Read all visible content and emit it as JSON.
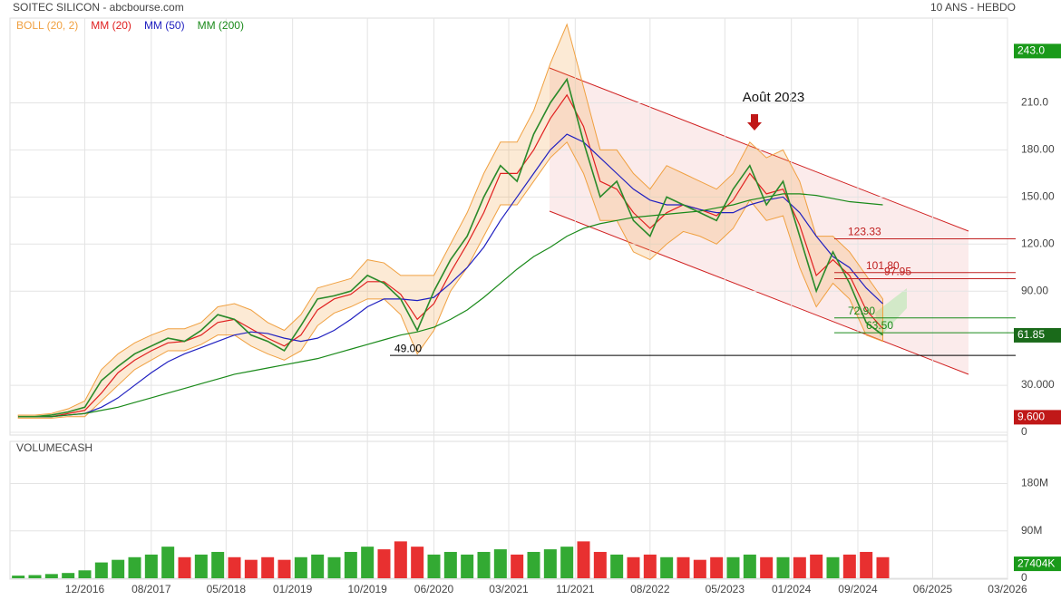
{
  "header": {
    "title": "SOITEC SILICON - abcbourse.com",
    "period": "10 ANS - HEBDO"
  },
  "chart_data": [
    {
      "type": "line",
      "x": [
        "04/2016",
        "06/2016",
        "08/2016",
        "10/2016",
        "12/2016",
        "02/2017",
        "04/2017",
        "06/2017",
        "08/2017",
        "10/2017",
        "12/2017",
        "02/2018",
        "04/2018",
        "06/2018",
        "08/2018",
        "10/2018",
        "12/2018",
        "02/2019",
        "04/2019",
        "06/2019",
        "08/2019",
        "10/2019",
        "12/2019",
        "02/2020",
        "04/2020",
        "06/2020",
        "08/2020",
        "10/2020",
        "12/2020",
        "02/2021",
        "04/2021",
        "06/2021",
        "08/2021",
        "10/2021",
        "12/2021",
        "02/2022",
        "04/2022",
        "06/2022",
        "08/2022",
        "10/2022",
        "12/2022",
        "02/2023",
        "04/2023",
        "06/2023",
        "08/2023",
        "10/2023",
        "12/2023",
        "02/2024",
        "04/2024",
        "06/2024",
        "08/2024",
        "10/2024",
        "12/2024"
      ],
      "values": [
        10,
        10,
        11,
        13,
        16,
        33,
        42,
        50,
        55,
        60,
        58,
        65,
        75,
        72,
        62,
        58,
        52,
        68,
        85,
        87,
        90,
        100,
        95,
        85,
        65,
        90,
        110,
        125,
        150,
        170,
        160,
        190,
        210,
        225,
        185,
        150,
        160,
        135,
        125,
        150,
        145,
        140,
        135,
        155,
        170,
        145,
        160,
        125,
        90,
        115,
        95,
        70,
        62
      ],
      "color": "#2a8a2a",
      "series": [
        {
          "name": "BOLL (20, 2)",
          "color": "#f0a040",
          "values": [
            11,
            11,
            12,
            15,
            20,
            40,
            50,
            57,
            62,
            66,
            66,
            70,
            80,
            82,
            78,
            70,
            65,
            75,
            92,
            95,
            98,
            110,
            108,
            100,
            100,
            100,
            120,
            140,
            165,
            185,
            185,
            205,
            235,
            260,
            220,
            180,
            180,
            165,
            155,
            170,
            165,
            160,
            155,
            165,
            185,
            175,
            180,
            160,
            125,
            125,
            115,
            100,
            85
          ],
          "lower": [
            9,
            9,
            9,
            10,
            10,
            20,
            30,
            40,
            46,
            52,
            52,
            56,
            62,
            62,
            55,
            50,
            46,
            52,
            68,
            76,
            80,
            85,
            85,
            75,
            50,
            65,
            90,
            105,
            125,
            145,
            145,
            160,
            175,
            185,
            165,
            135,
            135,
            115,
            110,
            120,
            128,
            125,
            120,
            130,
            148,
            135,
            138,
            105,
            80,
            95,
            85,
            62,
            58
          ]
        },
        {
          "name": "MM (20)",
          "color": "#e02020",
          "values": [
            10,
            10,
            10,
            12,
            14,
            25,
            38,
            46,
            52,
            57,
            58,
            62,
            70,
            72,
            66,
            60,
            55,
            62,
            78,
            85,
            88,
            96,
            96,
            88,
            72,
            82,
            102,
            120,
            140,
            165,
            165,
            180,
            200,
            215,
            195,
            160,
            155,
            140,
            130,
            140,
            145,
            142,
            138,
            148,
            165,
            152,
            155,
            132,
            100,
            110,
            100,
            78,
            66
          ]
        },
        {
          "name": "MM (50)",
          "color": "#2020c0",
          "values": [
            10,
            10,
            10,
            11,
            12,
            16,
            22,
            30,
            38,
            45,
            50,
            54,
            58,
            62,
            64,
            63,
            60,
            58,
            60,
            65,
            72,
            80,
            85,
            85,
            84,
            86,
            95,
            105,
            118,
            135,
            150,
            165,
            180,
            190,
            185,
            175,
            165,
            155,
            148,
            145,
            145,
            142,
            140,
            140,
            145,
            148,
            150,
            140,
            125,
            112,
            105,
            92,
            82
          ]
        },
        {
          "name": "MM (200)",
          "color": "#1a8a1a",
          "values": [
            10,
            10,
            10,
            11,
            12,
            14,
            16,
            19,
            22,
            25,
            28,
            31,
            34,
            37,
            39,
            41,
            43,
            45,
            47,
            50,
            53,
            56,
            59,
            62,
            64,
            67,
            72,
            78,
            86,
            95,
            104,
            112,
            118,
            125,
            130,
            133,
            135,
            137,
            138,
            139,
            140,
            141,
            143,
            145,
            148,
            150,
            152,
            152,
            151,
            149,
            147,
            146,
            145
          ]
        }
      ],
      "xlim": [
        "03/2016",
        "03/2026"
      ],
      "ylim": [
        0,
        264
      ],
      "yticks": [
        0,
        {
          "value": 30,
          "label": "30.000"
        },
        {
          "value": 90,
          "label": "90.00"
        },
        {
          "value": 120,
          "label": "120.00"
        },
        {
          "value": 150,
          "label": "150.00"
        },
        {
          "value": 180,
          "label": "180.00"
        },
        {
          "value": 210,
          "label": "210.0"
        }
      ],
      "price_tags": [
        {
          "value": 243.0,
          "label": "243.0",
          "color": "#1a9a1a"
        },
        {
          "value": 61.85,
          "label": "61.85",
          "color": "#1a6a1a"
        },
        {
          "value": 9.6,
          "label": "9.600",
          "color": "#c01818"
        }
      ],
      "levels": [
        {
          "value": 123.33,
          "label": "123.33",
          "color": "#c02020"
        },
        {
          "value": 101.8,
          "label": "101.80",
          "color": "#c02020"
        },
        {
          "value": 97.95,
          "label": "97.95",
          "color": "#c02020"
        },
        {
          "value": 72.9,
          "label": "72.90",
          "color": "#1a8a1a"
        },
        {
          "value": 63.5,
          "label": "63.50",
          "color": "#1a8a1a"
        },
        {
          "value": 49.0,
          "label": "49.00",
          "color": "#000000"
        }
      ],
      "annotation": "Août 2023",
      "grid": true
    },
    {
      "type": "bar",
      "title": "VOLUMECASH",
      "values": [
        5,
        6,
        8,
        10,
        15,
        30,
        35,
        40,
        45,
        60,
        40,
        45,
        50,
        40,
        35,
        40,
        35,
        40,
        45,
        40,
        50,
        60,
        55,
        70,
        60,
        45,
        50,
        45,
        50,
        55,
        45,
        50,
        55,
        60,
        70,
        50,
        45,
        40,
        45,
        40,
        40,
        35,
        40,
        40,
        45,
        40,
        40,
        40,
        45,
        40,
        45,
        50,
        40
      ],
      "up_color": "#33aa33",
      "down_color": "#e83030",
      "ylim": [
        0,
        260
      ],
      "yticks": [
        0,
        {
          "value": 90,
          "label": "90M"
        },
        {
          "value": 180,
          "label": "180M"
        }
      ],
      "value_tag": {
        "value": 27.404,
        "label": "27404K"
      },
      "xticks": [
        "12/2016",
        "08/2017",
        "05/2018",
        "01/2019",
        "10/2019",
        "06/2020",
        "03/2021",
        "11/2021",
        "08/2022",
        "05/2023",
        "01/2024",
        "09/2024",
        "06/2025",
        "03/2026"
      ],
      "grid": true
    }
  ]
}
